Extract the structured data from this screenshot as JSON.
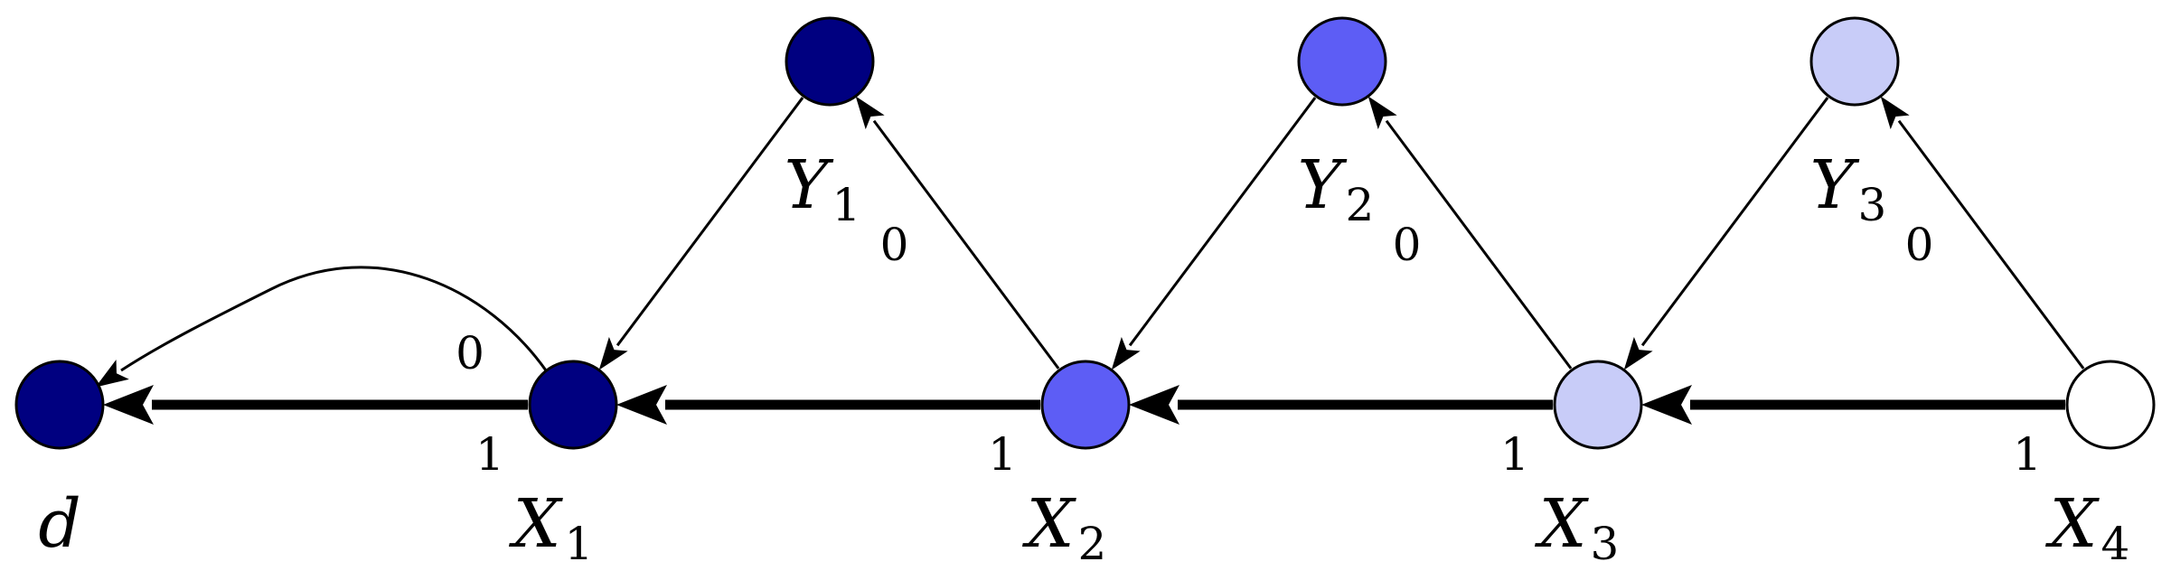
{
  "nodes": [
    {
      "id": "d",
      "name": "d",
      "sub": "",
      "fill": "#000080"
    },
    {
      "id": "X1",
      "name": "X",
      "sub": "1",
      "fill": "#000080"
    },
    {
      "id": "X2",
      "name": "X",
      "sub": "2",
      "fill": "#5D5DF5"
    },
    {
      "id": "X3",
      "name": "X",
      "sub": "3",
      "fill": "#C8CCF8"
    },
    {
      "id": "X4",
      "name": "X",
      "sub": "4",
      "fill": "#FFFFFF"
    },
    {
      "id": "Y1",
      "name": "Y",
      "sub": "1",
      "fill": "#000080"
    },
    {
      "id": "Y2",
      "name": "Y",
      "sub": "2",
      "fill": "#5D5DF5"
    },
    {
      "id": "Y3",
      "name": "Y",
      "sub": "3",
      "fill": "#C8CCF8"
    }
  ],
  "edges": [
    {
      "from": "X1",
      "to": "d",
      "weight": "1",
      "style": "thick"
    },
    {
      "from": "X2",
      "to": "X1",
      "weight": "1",
      "style": "thick"
    },
    {
      "from": "X3",
      "to": "X2",
      "weight": "1",
      "style": "thick"
    },
    {
      "from": "X4",
      "to": "X3",
      "weight": "1",
      "style": "thick"
    },
    {
      "from": "X1",
      "to": "d",
      "weight": "0",
      "style": "curved"
    },
    {
      "from": "X2",
      "to": "Y1",
      "weight": "0",
      "style": "thin"
    },
    {
      "from": "X3",
      "to": "Y2",
      "weight": "0",
      "style": "thin"
    },
    {
      "from": "X4",
      "to": "Y3",
      "weight": "0",
      "style": "thin"
    },
    {
      "from": "Y1",
      "to": "X1",
      "weight": "",
      "style": "thin"
    },
    {
      "from": "Y2",
      "to": "X2",
      "weight": "",
      "style": "thin"
    },
    {
      "from": "Y3",
      "to": "X3",
      "weight": "",
      "style": "thin"
    }
  ]
}
